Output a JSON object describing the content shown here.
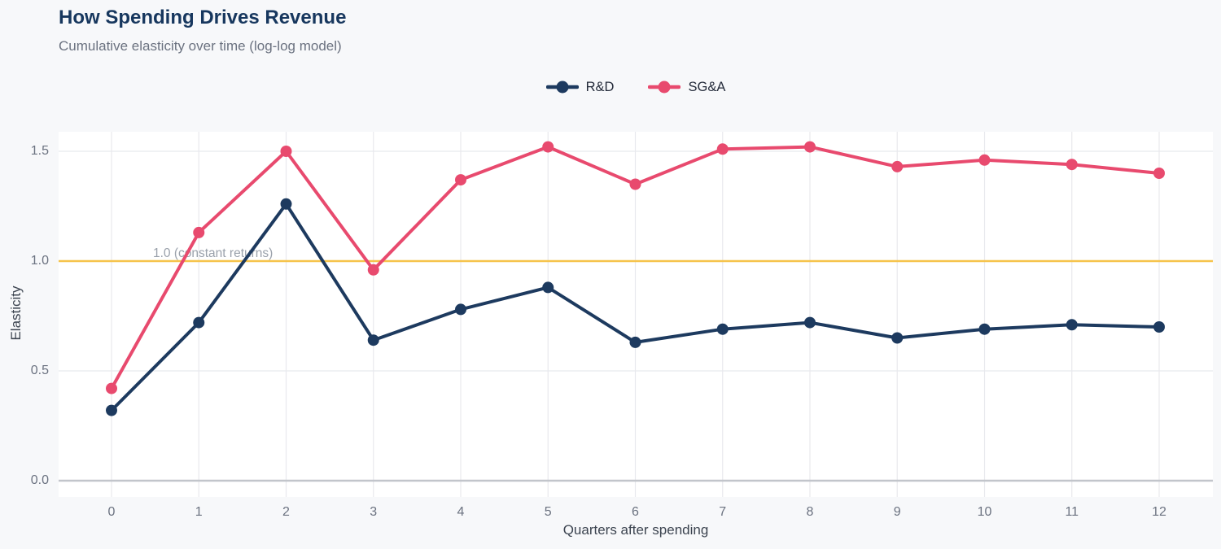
{
  "chart_data": {
    "type": "line",
    "title": "How Spending Drives Revenue",
    "subtitle": "Cumulative elasticity over time (log-log model)",
    "xlabel": "Quarters after spending",
    "ylabel": "Elasticity",
    "x": [
      0,
      1,
      2,
      3,
      4,
      5,
      6,
      7,
      8,
      9,
      10,
      11,
      12
    ],
    "series": [
      {
        "name": "R&D",
        "color": "#1d3a5f",
        "values": [
          0.32,
          0.72,
          1.26,
          0.64,
          0.78,
          0.88,
          0.63,
          0.69,
          0.72,
          0.65,
          0.69,
          0.71,
          0.7
        ]
      },
      {
        "name": "SG&A",
        "color": "#e84a6e",
        "values": [
          0.42,
          1.13,
          1.5,
          0.96,
          1.37,
          1.52,
          1.35,
          1.51,
          1.52,
          1.43,
          1.46,
          1.44,
          1.4
        ]
      }
    ],
    "xtick_labels": [
      "0",
      "1",
      "2",
      "3",
      "4",
      "5",
      "6",
      "7",
      "8",
      "9",
      "10",
      "11",
      "12"
    ],
    "yticks": [
      0.0,
      0.5,
      1.0,
      1.5
    ],
    "ytick_labels": [
      "0.0",
      "0.5",
      "1.0",
      "1.5"
    ],
    "xlim": [
      -0.6,
      12.6
    ],
    "ylim": [
      -0.07,
      1.59
    ],
    "grid": true,
    "legend_position": "top-center",
    "reference_line": {
      "value": 1.0,
      "label": "1.0 (constant returns)",
      "color": "#f6c34b"
    }
  },
  "colors": {
    "page_bg": "#f7f8fa",
    "plot_bg": "#ffffff",
    "grid": "#e8e9ed",
    "zero_line": "#c2c5cb",
    "title": "#17375e",
    "subtitle": "#6b7280",
    "tick": "#6b7280",
    "axis_title": "#3c4450",
    "annotation": "#9aa1ab",
    "legend_text": "#242b3a"
  }
}
